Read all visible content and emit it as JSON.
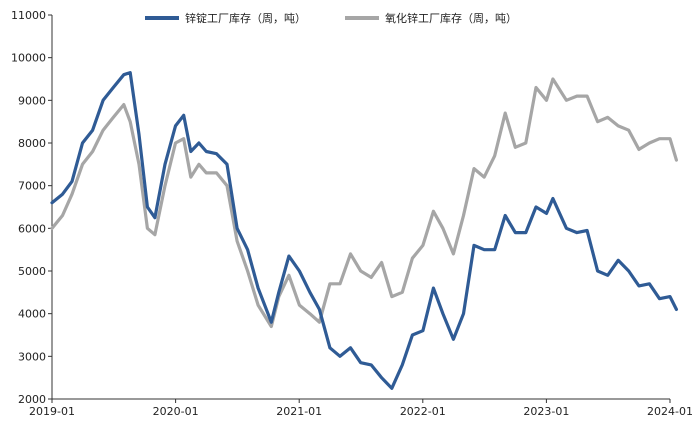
{
  "chart_data": {
    "type": "line",
    "xlabel": "",
    "ylabel": "",
    "x_ticks": [
      "2019-01",
      "2020-01",
      "2021-01",
      "2022-01",
      "2023-01",
      "2024-01"
    ],
    "ylim": [
      2000,
      11000
    ],
    "y_ticks": [
      2000,
      3000,
      4000,
      5000,
      6000,
      7000,
      8000,
      9000,
      10000,
      11000
    ],
    "legend_position": "top",
    "grid": false,
    "series": [
      {
        "name": "锌锭工厂库存（周，吨）",
        "color": "#2f5b95",
        "points": [
          [
            "2019-01-01",
            6600
          ],
          [
            "2019-02-01",
            6800
          ],
          [
            "2019-03-01",
            7100
          ],
          [
            "2019-04-01",
            8000
          ],
          [
            "2019-05-01",
            8300
          ],
          [
            "2019-06-01",
            9000
          ],
          [
            "2019-07-01",
            9300
          ],
          [
            "2019-08-01",
            9600
          ],
          [
            "2019-08-20",
            9650
          ],
          [
            "2019-09-15",
            8200
          ],
          [
            "2019-10-10",
            6500
          ],
          [
            "2019-11-01",
            6250
          ],
          [
            "2019-12-01",
            7500
          ],
          [
            "2020-01-01",
            8400
          ],
          [
            "2020-01-25",
            8650
          ],
          [
            "2020-02-15",
            7800
          ],
          [
            "2020-03-10",
            8000
          ],
          [
            "2020-04-01",
            7800
          ],
          [
            "2020-05-01",
            7750
          ],
          [
            "2020-06-01",
            7500
          ],
          [
            "2020-07-01",
            6000
          ],
          [
            "2020-08-01",
            5500
          ],
          [
            "2020-09-01",
            4600
          ],
          [
            "2020-10-10",
            3800
          ],
          [
            "2020-11-01",
            4500
          ],
          [
            "2020-12-01",
            5350
          ],
          [
            "2021-01-01",
            5000
          ],
          [
            "2021-02-01",
            4500
          ],
          [
            "2021-03-01",
            4100
          ],
          [
            "2021-04-01",
            3200
          ],
          [
            "2021-05-01",
            3000
          ],
          [
            "2021-06-01",
            3200
          ],
          [
            "2021-07-01",
            2850
          ],
          [
            "2021-08-01",
            2800
          ],
          [
            "2021-09-01",
            2500
          ],
          [
            "2021-10-01",
            2250
          ],
          [
            "2021-11-01",
            2800
          ],
          [
            "2021-12-01",
            3500
          ],
          [
            "2022-01-01",
            3600
          ],
          [
            "2022-02-01",
            4600
          ],
          [
            "2022-03-01",
            4000
          ],
          [
            "2022-04-01",
            3400
          ],
          [
            "2022-05-01",
            4000
          ],
          [
            "2022-06-01",
            5600
          ],
          [
            "2022-07-01",
            5500
          ],
          [
            "2022-08-01",
            5500
          ],
          [
            "2022-09-01",
            6300
          ],
          [
            "2022-10-01",
            5900
          ],
          [
            "2022-11-01",
            5900
          ],
          [
            "2022-12-01",
            6500
          ],
          [
            "2023-01-01",
            6350
          ],
          [
            "2023-01-20",
            6700
          ],
          [
            "2023-03-01",
            6000
          ],
          [
            "2023-04-01",
            5900
          ],
          [
            "2023-05-01",
            5950
          ],
          [
            "2023-06-01",
            5000
          ],
          [
            "2023-07-01",
            4900
          ],
          [
            "2023-08-01",
            5250
          ],
          [
            "2023-09-01",
            5000
          ],
          [
            "2023-10-01",
            4650
          ],
          [
            "2023-11-01",
            4700
          ],
          [
            "2023-12-01",
            4350
          ],
          [
            "2024-01-01",
            4400
          ],
          [
            "2024-01-20",
            4100
          ]
        ]
      },
      {
        "name": "氧化锌工厂库存（周，吨）",
        "color": "#a6a6a6",
        "points": [
          [
            "2019-01-01",
            6000
          ],
          [
            "2019-02-01",
            6300
          ],
          [
            "2019-03-01",
            6800
          ],
          [
            "2019-04-01",
            7500
          ],
          [
            "2019-05-01",
            7800
          ],
          [
            "2019-06-01",
            8300
          ],
          [
            "2019-07-01",
            8600
          ],
          [
            "2019-08-01",
            8900
          ],
          [
            "2019-08-20",
            8500
          ],
          [
            "2019-09-15",
            7500
          ],
          [
            "2019-10-10",
            6000
          ],
          [
            "2019-11-01",
            5850
          ],
          [
            "2019-12-01",
            7000
          ],
          [
            "2020-01-01",
            8000
          ],
          [
            "2020-01-25",
            8100
          ],
          [
            "2020-02-15",
            7200
          ],
          [
            "2020-03-10",
            7500
          ],
          [
            "2020-04-01",
            7300
          ],
          [
            "2020-05-01",
            7300
          ],
          [
            "2020-06-01",
            7000
          ],
          [
            "2020-07-01",
            5700
          ],
          [
            "2020-08-01",
            5000
          ],
          [
            "2020-09-01",
            4200
          ],
          [
            "2020-10-10",
            3700
          ],
          [
            "2020-11-01",
            4400
          ],
          [
            "2020-12-01",
            4900
          ],
          [
            "2021-01-01",
            4200
          ],
          [
            "2021-02-01",
            4000
          ],
          [
            "2021-03-01",
            3800
          ],
          [
            "2021-04-01",
            4700
          ],
          [
            "2021-05-01",
            4700
          ],
          [
            "2021-06-01",
            5400
          ],
          [
            "2021-07-01",
            5000
          ],
          [
            "2021-08-01",
            4850
          ],
          [
            "2021-09-01",
            5200
          ],
          [
            "2021-10-01",
            4400
          ],
          [
            "2021-11-01",
            4500
          ],
          [
            "2021-12-01",
            5300
          ],
          [
            "2022-01-01",
            5600
          ],
          [
            "2022-02-01",
            6400
          ],
          [
            "2022-03-01",
            6000
          ],
          [
            "2022-04-01",
            5400
          ],
          [
            "2022-05-01",
            6300
          ],
          [
            "2022-06-01",
            7400
          ],
          [
            "2022-07-01",
            7200
          ],
          [
            "2022-08-01",
            7700
          ],
          [
            "2022-09-01",
            8700
          ],
          [
            "2022-10-01",
            7900
          ],
          [
            "2022-11-01",
            8000
          ],
          [
            "2022-12-01",
            9300
          ],
          [
            "2023-01-01",
            9000
          ],
          [
            "2023-01-20",
            9500
          ],
          [
            "2023-03-01",
            9000
          ],
          [
            "2023-04-01",
            9100
          ],
          [
            "2023-05-01",
            9100
          ],
          [
            "2023-06-01",
            8500
          ],
          [
            "2023-07-01",
            8600
          ],
          [
            "2023-08-01",
            8400
          ],
          [
            "2023-09-01",
            8300
          ],
          [
            "2023-10-01",
            7850
          ],
          [
            "2023-11-01",
            8000
          ],
          [
            "2023-12-01",
            8100
          ],
          [
            "2024-01-01",
            8100
          ],
          [
            "2024-01-20",
            7600
          ]
        ]
      }
    ]
  }
}
